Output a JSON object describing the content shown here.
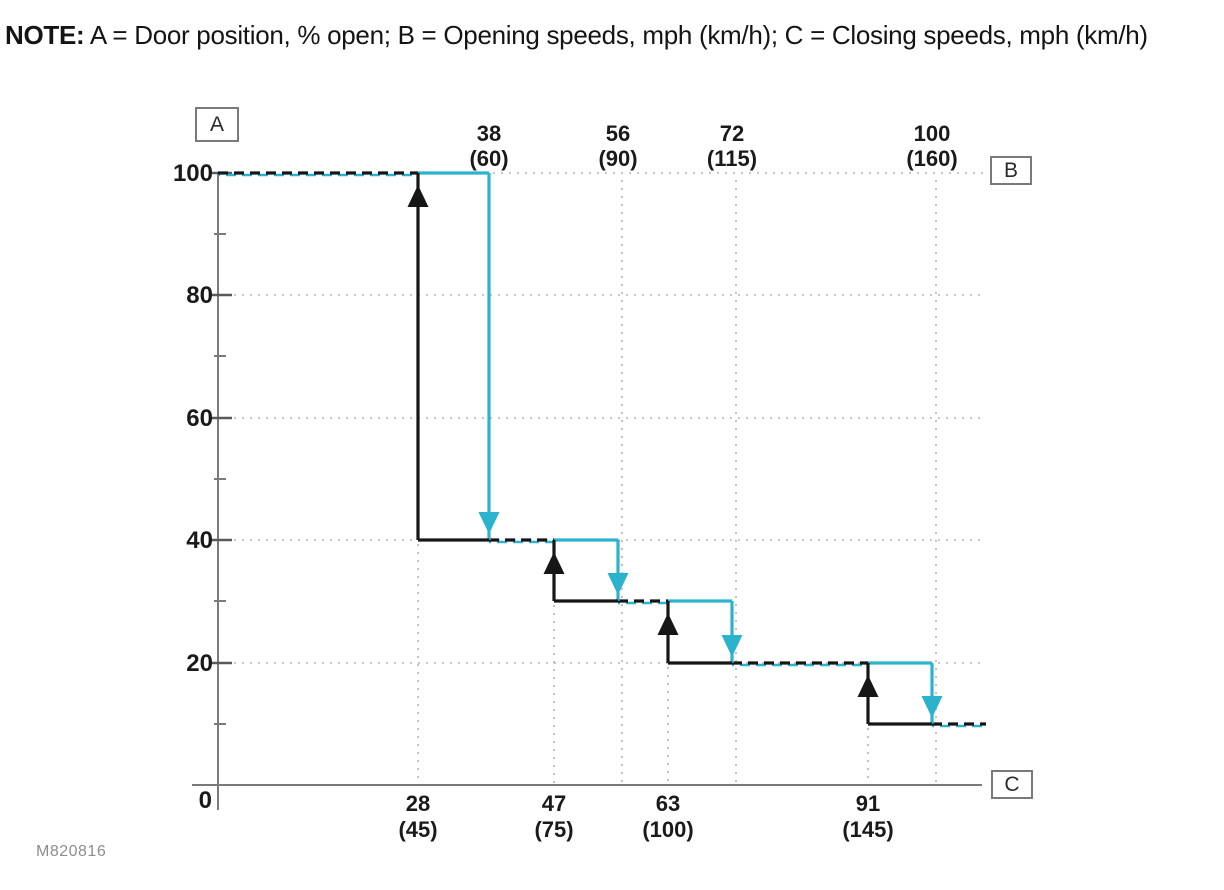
{
  "note": {
    "label": "NOTE:",
    "text": " A = Door position, % open; B = Opening speeds, mph (km/h); C = Closing speeds, mph (km/h)"
  },
  "figure_id": "M820816",
  "chart_data": {
    "type": "line",
    "variant": "step-hysteresis",
    "title": "",
    "key_boxes": {
      "y_axis": "A",
      "top_axis": "B",
      "bottom_axis": "C"
    },
    "legend": {
      "A": "Door position, % open",
      "B": "Opening speeds, mph (km/h)",
      "C": "Closing speeds, mph (km/h)"
    },
    "y_axis": {
      "ticks": [
        0,
        20,
        40,
        60,
        80,
        100
      ],
      "minor_ticks": [
        10,
        30,
        50,
        70,
        90
      ],
      "range": [
        0,
        100
      ]
    },
    "position_levels_pct": [
      100,
      40,
      30,
      20,
      10
    ],
    "top_axis_speeds": [
      {
        "mph": 38,
        "kmh": 60
      },
      {
        "mph": 56,
        "kmh": 90
      },
      {
        "mph": 72,
        "kmh": 115
      },
      {
        "mph": 100,
        "kmh": 160
      }
    ],
    "bottom_axis_speeds": [
      {
        "mph": 28,
        "kmh": 45
      },
      {
        "mph": 47,
        "kmh": 75
      },
      {
        "mph": 63,
        "kmh": 100
      },
      {
        "mph": 91,
        "kmh": 145
      }
    ],
    "series": [
      {
        "name": "open-up-at-closing-speeds",
        "color_key": "black_line",
        "arrow": "up",
        "speed_labels_row": "bottom (C)",
        "points": [
          {
            "mph": 28,
            "kmh": 45,
            "from_pct": 40,
            "to_pct": 100
          },
          {
            "mph": 47,
            "kmh": 75,
            "from_pct": 30,
            "to_pct": 40
          },
          {
            "mph": 63,
            "kmh": 100,
            "from_pct": 20,
            "to_pct": 30
          },
          {
            "mph": 91,
            "kmh": 145,
            "from_pct": 10,
            "to_pct": 20
          }
        ]
      },
      {
        "name": "close-down-at-opening-speeds",
        "color_key": "cyan_line",
        "arrow": "down",
        "speed_labels_row": "top (B)",
        "points": [
          {
            "mph": 38,
            "kmh": 60,
            "from_pct": 100,
            "to_pct": 40
          },
          {
            "mph": 56,
            "kmh": 90,
            "from_pct": 40,
            "to_pct": 30
          },
          {
            "mph": 72,
            "kmh": 115,
            "from_pct": 30,
            "to_pct": 20
          },
          {
            "mph": 100,
            "kmh": 160,
            "from_pct": 20,
            "to_pct": 10
          }
        ]
      }
    ],
    "grid": true,
    "colors": {
      "black_line": "#161616",
      "cyan_line": "#2bb2cd",
      "axis": "#7a7a7a",
      "grid": "#b3b3b3",
      "text": "#1a1a1a",
      "figure_id_text": "#8d8d8d"
    }
  }
}
